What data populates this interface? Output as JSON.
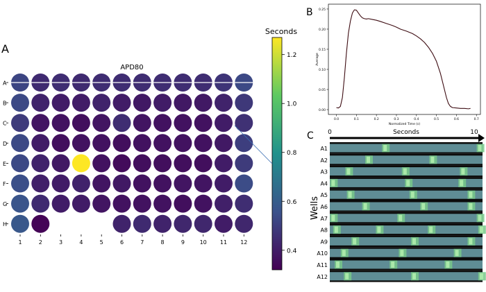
{
  "panels": {
    "a": {
      "letter": "A"
    },
    "b": {
      "letter": "B"
    },
    "c": {
      "letter": "C"
    }
  },
  "colormap": {
    "stops": [
      {
        "t": 0.0,
        "color": "#440154"
      },
      {
        "t": 0.25,
        "color": "#3b528b"
      },
      {
        "t": 0.5,
        "color": "#21918c"
      },
      {
        "t": 0.75,
        "color": "#5ec962"
      },
      {
        "t": 1.0,
        "color": "#fde725"
      }
    ],
    "vmin": 0.32,
    "vmax": 1.27
  },
  "chart_data": [
    {
      "type": "heatmap",
      "title": "APD80",
      "row_labels": [
        "A",
        "B",
        "C",
        "D",
        "E",
        "F",
        "G",
        "H"
      ],
      "column_labels": [
        "1",
        "2",
        "3",
        "4",
        "5",
        "6",
        "7",
        "8",
        "9",
        "10",
        "11",
        "12"
      ],
      "values": [
        [
          0.52,
          0.44,
          0.45,
          0.44,
          0.45,
          0.45,
          0.45,
          0.45,
          0.45,
          0.45,
          0.47,
          0.53
        ],
        [
          0.53,
          0.42,
          0.4,
          0.4,
          0.42,
          0.4,
          0.39,
          0.4,
          0.39,
          0.39,
          0.42,
          0.48
        ],
        [
          0.49,
          0.38,
          0.37,
          0.36,
          0.38,
          0.45,
          0.38,
          0.37,
          0.37,
          0.37,
          0.4,
          0.46
        ],
        [
          0.53,
          0.4,
          0.36,
          0.37,
          0.37,
          0.36,
          0.37,
          0.37,
          0.37,
          0.37,
          0.39,
          0.5
        ],
        [
          0.53,
          0.42,
          0.39,
          1.27,
          0.37,
          0.35,
          0.36,
          0.36,
          0.36,
          0.36,
          0.4,
          0.49
        ],
        [
          0.55,
          0.41,
          0.4,
          0.42,
          0.38,
          0.39,
          0.37,
          0.37,
          0.38,
          0.38,
          0.4,
          0.54
        ],
        [
          0.57,
          0.44,
          0.4,
          0.4,
          0.38,
          0.37,
          0.37,
          0.37,
          0.36,
          0.37,
          0.41,
          0.45
        ],
        [
          0.58,
          0.33,
          null,
          null,
          null,
          0.42,
          0.44,
          0.42,
          0.43,
          0.43,
          0.4,
          0.43
        ]
      ],
      "colorbar": {
        "label": "Seconds",
        "ticks": [
          0.4,
          0.6,
          0.8,
          1.0,
          1.2
        ],
        "tick_labels": [
          "0.4",
          "0.6",
          "0.8",
          "1.0",
          "1.2"
        ]
      }
    },
    {
      "type": "line",
      "xlabel": "Normalized Time (s)",
      "ylabel": "Average",
      "xlim": [
        -0.04,
        0.72
      ],
      "ylim": [
        -0.012,
        0.262
      ],
      "xticks": [
        0.0,
        0.1,
        0.2,
        0.3,
        0.4,
        0.5,
        0.6,
        0.7
      ],
      "xtick_labels": [
        "0.0",
        "0.1",
        "0.2",
        "0.3",
        "0.4",
        "0.5",
        "0.6",
        "0.7"
      ],
      "yticks": [
        0.0,
        0.05,
        0.1,
        0.15,
        0.2,
        0.25
      ],
      "ytick_labels": [
        "0.00",
        "0.05",
        "0.10",
        "0.15",
        "0.20",
        "0.25"
      ],
      "series": [
        {
          "name": "Average",
          "color": "#3d0c12",
          "x": [
            0.0,
            0.01,
            0.02,
            0.03,
            0.04,
            0.05,
            0.06,
            0.07,
            0.08,
            0.09,
            0.1,
            0.11,
            0.12,
            0.13,
            0.14,
            0.15,
            0.16,
            0.18,
            0.2,
            0.22,
            0.25,
            0.28,
            0.3,
            0.32,
            0.35,
            0.38,
            0.4,
            0.42,
            0.44,
            0.46,
            0.48,
            0.5,
            0.52,
            0.53,
            0.54,
            0.55,
            0.56,
            0.57,
            0.58,
            0.6,
            0.62,
            0.64,
            0.66,
            0.67
          ],
          "y": [
            0.005,
            0.004,
            0.008,
            0.03,
            0.08,
            0.14,
            0.19,
            0.22,
            0.24,
            0.248,
            0.247,
            0.24,
            0.233,
            0.228,
            0.226,
            0.225,
            0.226,
            0.224,
            0.222,
            0.219,
            0.214,
            0.209,
            0.205,
            0.2,
            0.195,
            0.189,
            0.183,
            0.176,
            0.167,
            0.155,
            0.14,
            0.12,
            0.09,
            0.07,
            0.05,
            0.03,
            0.015,
            0.008,
            0.005,
            0.004,
            0.003,
            0.003,
            0.002,
            0.003
          ]
        }
      ]
    },
    {
      "type": "heatmap",
      "description_label": "kymograph",
      "x_arrow_label": "Seconds",
      "x_start_label": "0",
      "x_end_label": "10",
      "ylabel": "Wells",
      "row_labels": [
        "A1",
        "A2",
        "A3",
        "A4",
        "A5",
        "A6",
        "A7",
        "A8",
        "A9",
        "A10",
        "A11",
        "A12"
      ],
      "beat_times_s": [
        [
          3.6,
          9.8
        ],
        [
          2.5,
          6.7
        ],
        [
          1.2,
          4.9,
          8.7
        ],
        [
          0.2,
          5.1,
          8.6
        ],
        [
          1.3,
          5.4,
          9.2
        ],
        [
          2.3,
          6.1,
          9.2
        ],
        [
          0.2,
          4.6,
          9.8
        ],
        [
          0.4,
          3.2,
          6.6,
          9.9
        ],
        [
          1.6,
          5.5,
          9.2
        ],
        [
          0.9,
          4.7,
          8.3
        ],
        [
          0.5,
          4.1,
          7.7
        ],
        [
          1.1,
          5.5,
          9.9
        ]
      ]
    }
  ]
}
